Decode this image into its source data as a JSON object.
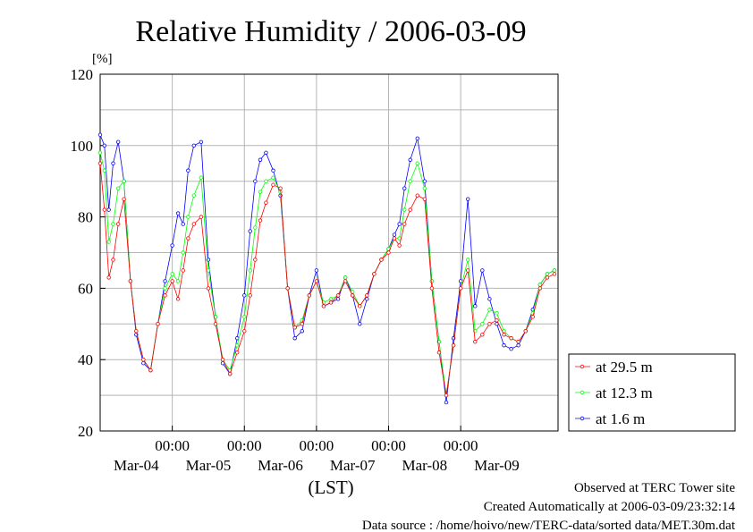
{
  "chart_data": {
    "type": "line",
    "title": "Relative Humidity / 2006-03-09",
    "yunit": "[%]",
    "xlabel": "(LST)",
    "ylim": [
      20,
      120
    ],
    "yticks": [
      20,
      40,
      60,
      80,
      100,
      120
    ],
    "xlim": [
      0,
      6.35
    ],
    "time_tick_labels": [
      "00:00",
      "00:00",
      "00:00",
      "00:00",
      "00:00"
    ],
    "date_tick_labels": [
      "Mar-04",
      "Mar-05",
      "Mar-06",
      "Mar-07",
      "Mar-08",
      "Mar-09"
    ],
    "grid": true,
    "legend_position": "right",
    "series": [
      {
        "name": "at 29.5 m",
        "color": "#ff0000",
        "x": [
          0.0,
          0.06,
          0.12,
          0.18,
          0.25,
          0.33,
          0.42,
          0.5,
          0.6,
          0.7,
          0.8,
          0.9,
          1.0,
          1.08,
          1.15,
          1.22,
          1.3,
          1.4,
          1.5,
          1.6,
          1.7,
          1.8,
          1.9,
          2.0,
          2.08,
          2.15,
          2.22,
          2.3,
          2.4,
          2.5,
          2.6,
          2.7,
          2.8,
          2.9,
          3.0,
          3.1,
          3.2,
          3.3,
          3.4,
          3.5,
          3.6,
          3.7,
          3.8,
          3.9,
          4.0,
          4.08,
          4.15,
          4.22,
          4.3,
          4.4,
          4.5,
          4.6,
          4.7,
          4.8,
          4.9,
          5.0,
          5.1,
          5.2,
          5.3,
          5.4,
          5.5,
          5.6,
          5.7,
          5.8,
          5.9,
          6.0,
          6.1,
          6.2,
          6.3
        ],
        "y": [
          95,
          82,
          63,
          68,
          78,
          85,
          62,
          48,
          40,
          37,
          50,
          58,
          62,
          57,
          65,
          74,
          78,
          80,
          60,
          50,
          40,
          36,
          42,
          48,
          58,
          68,
          79,
          84,
          89,
          88,
          60,
          49,
          50,
          58,
          62,
          55,
          56,
          58,
          62,
          58,
          55,
          58,
          64,
          68,
          70,
          74,
          72,
          78,
          82,
          86,
          85,
          60,
          42,
          30,
          44,
          60,
          65,
          45,
          47,
          50,
          51,
          47,
          46,
          45,
          48,
          52,
          60,
          63,
          64
        ]
      },
      {
        "name": "at 12.3 m",
        "color": "#00ff00",
        "x": [
          0.0,
          0.06,
          0.12,
          0.18,
          0.25,
          0.33,
          0.42,
          0.5,
          0.6,
          0.7,
          0.8,
          0.9,
          1.0,
          1.08,
          1.15,
          1.22,
          1.3,
          1.4,
          1.5,
          1.6,
          1.7,
          1.8,
          1.9,
          2.0,
          2.08,
          2.15,
          2.22,
          2.3,
          2.4,
          2.5,
          2.6,
          2.7,
          2.8,
          2.9,
          3.0,
          3.1,
          3.2,
          3.3,
          3.4,
          3.5,
          3.6,
          3.7,
          3.8,
          3.9,
          4.0,
          4.08,
          4.15,
          4.22,
          4.3,
          4.4,
          4.5,
          4.6,
          4.7,
          4.8,
          4.9,
          5.0,
          5.1,
          5.2,
          5.3,
          5.4,
          5.5,
          5.6,
          5.7,
          5.8,
          5.9,
          6.0,
          6.1,
          6.2,
          6.3
        ],
        "y": [
          98,
          93,
          73,
          78,
          88,
          90,
          62,
          48,
          40,
          37,
          50,
          60,
          64,
          62,
          70,
          80,
          86,
          91,
          65,
          52,
          40,
          37,
          44,
          52,
          65,
          77,
          87,
          90,
          91,
          87,
          60,
          49,
          51,
          58,
          62,
          56,
          57,
          58,
          63,
          59,
          55,
          58,
          64,
          68,
          71,
          74,
          74,
          82,
          90,
          95,
          88,
          62,
          45,
          30,
          44,
          60,
          68,
          48,
          50,
          54,
          53,
          48,
          46,
          45,
          48,
          53,
          61,
          64,
          65
        ]
      },
      {
        "name": "at 1.6 m",
        "color": "#0000ff",
        "x": [
          0.0,
          0.06,
          0.12,
          0.18,
          0.25,
          0.33,
          0.42,
          0.5,
          0.6,
          0.7,
          0.8,
          0.9,
          1.0,
          1.08,
          1.15,
          1.22,
          1.3,
          1.4,
          1.5,
          1.6,
          1.7,
          1.8,
          1.9,
          2.0,
          2.08,
          2.15,
          2.22,
          2.3,
          2.4,
          2.5,
          2.6,
          2.7,
          2.8,
          2.9,
          3.0,
          3.1,
          3.2,
          3.3,
          3.4,
          3.5,
          3.6,
          3.7,
          3.8,
          3.9,
          4.0,
          4.08,
          4.15,
          4.22,
          4.3,
          4.4,
          4.5,
          4.6,
          4.7,
          4.8,
          4.9,
          5.0,
          5.1,
          5.2,
          5.3,
          5.4,
          5.5,
          5.6,
          5.7,
          5.8,
          5.9,
          6.0,
          6.1,
          6.2,
          6.3
        ],
        "y": [
          103,
          100,
          82,
          95,
          101,
          90,
          62,
          47,
          39,
          37,
          50,
          62,
          72,
          81,
          78,
          93,
          100,
          101,
          68,
          52,
          39,
          36,
          46,
          58,
          76,
          90,
          96,
          98,
          93,
          86,
          60,
          46,
          48,
          58,
          65,
          55,
          56,
          57,
          63,
          58,
          50,
          57,
          64,
          68,
          71,
          75,
          78,
          88,
          96,
          102,
          90,
          62,
          45,
          28,
          46,
          62,
          85,
          55,
          65,
          57,
          50,
          44,
          43,
          44,
          48,
          54,
          61,
          64,
          65
        ]
      }
    ]
  },
  "footer": {
    "line1": "Observed at TERC Tower site",
    "line2": "Created Automatically at 2006-03-09/23:32:14",
    "line3": "Data source : /home/hoivo/new/TERC-data/sorted  data/MET.30m.dat"
  }
}
